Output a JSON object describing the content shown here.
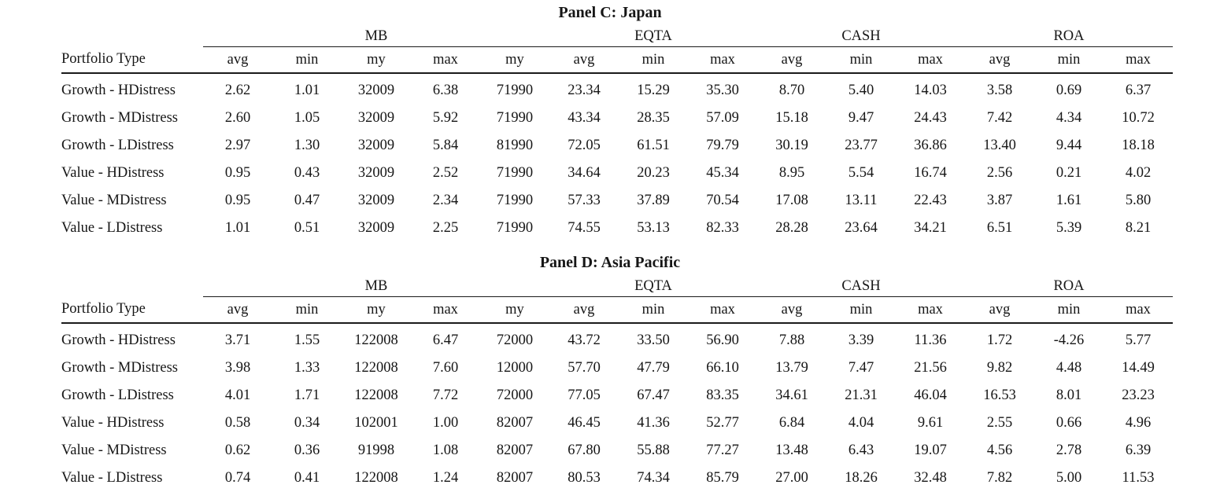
{
  "panels": [
    {
      "title": "Panel C: Japan",
      "row_header": "Portfolio Type",
      "groups": [
        {
          "label": "MB",
          "colspan": 5
        },
        {
          "label": "EQTA",
          "colspan": 3
        },
        {
          "label": "CASH",
          "colspan": 3
        },
        {
          "label": "ROA",
          "colspan": 3
        }
      ],
      "sub_headers": [
        "avg",
        "min",
        "my",
        "max",
        "my",
        "avg",
        "min",
        "max",
        "avg",
        "min",
        "max",
        "avg",
        "min",
        "max"
      ],
      "rows": [
        {
          "label": "Growth - HDistress",
          "values": [
            "2.62",
            "1.01",
            "32009",
            "6.38",
            "71990",
            "23.34",
            "15.29",
            "35.30",
            "8.70",
            "5.40",
            "14.03",
            "3.58",
            "0.69",
            "6.37"
          ]
        },
        {
          "label": "Growth - MDistress",
          "values": [
            "2.60",
            "1.05",
            "32009",
            "5.92",
            "71990",
            "43.34",
            "28.35",
            "57.09",
            "15.18",
            "9.47",
            "24.43",
            "7.42",
            "4.34",
            "10.72"
          ]
        },
        {
          "label": "Growth - LDistress",
          "values": [
            "2.97",
            "1.30",
            "32009",
            "5.84",
            "81990",
            "72.05",
            "61.51",
            "79.79",
            "30.19",
            "23.77",
            "36.86",
            "13.40",
            "9.44",
            "18.18"
          ]
        },
        {
          "label": "Value - HDistress",
          "values": [
            "0.95",
            "0.43",
            "32009",
            "2.52",
            "71990",
            "34.64",
            "20.23",
            "45.34",
            "8.95",
            "5.54",
            "16.74",
            "2.56",
            "0.21",
            "4.02"
          ]
        },
        {
          "label": "Value - MDistress",
          "values": [
            "0.95",
            "0.47",
            "32009",
            "2.34",
            "71990",
            "57.33",
            "37.89",
            "70.54",
            "17.08",
            "13.11",
            "22.43",
            "3.87",
            "1.61",
            "5.80"
          ]
        },
        {
          "label": "Value - LDistress",
          "values": [
            "1.01",
            "0.51",
            "32009",
            "2.25",
            "71990",
            "74.55",
            "53.13",
            "82.33",
            "28.28",
            "23.64",
            "34.21",
            "6.51",
            "5.39",
            "8.21"
          ]
        }
      ]
    },
    {
      "title": "Panel D: Asia Pacific",
      "row_header": "Portfolio Type",
      "groups": [
        {
          "label": "MB",
          "colspan": 5
        },
        {
          "label": "EQTA",
          "colspan": 3
        },
        {
          "label": "CASH",
          "colspan": 3
        },
        {
          "label": "ROA",
          "colspan": 3
        }
      ],
      "sub_headers": [
        "avg",
        "min",
        "my",
        "max",
        "my",
        "avg",
        "min",
        "max",
        "avg",
        "min",
        "max",
        "avg",
        "min",
        "max"
      ],
      "rows": [
        {
          "label": "Growth - HDistress",
          "values": [
            "3.71",
            "1.55",
            "122008",
            "6.47",
            "72000",
            "43.72",
            "33.50",
            "56.90",
            "7.88",
            "3.39",
            "11.36",
            "1.72",
            "-4.26",
            "5.77"
          ]
        },
        {
          "label": "Growth - MDistress",
          "values": [
            "3.98",
            "1.33",
            "122008",
            "7.60",
            "12000",
            "57.70",
            "47.79",
            "66.10",
            "13.79",
            "7.47",
            "21.56",
            "9.82",
            "4.48",
            "14.49"
          ]
        },
        {
          "label": "Growth - LDistress",
          "values": [
            "4.01",
            "1.71",
            "122008",
            "7.72",
            "72000",
            "77.05",
            "67.47",
            "83.35",
            "34.61",
            "21.31",
            "46.04",
            "16.53",
            "8.01",
            "23.23"
          ]
        },
        {
          "label": "Value - HDistress",
          "values": [
            "0.58",
            "0.34",
            "102001",
            "1.00",
            "82007",
            "46.45",
            "41.36",
            "52.77",
            "6.84",
            "4.04",
            "9.61",
            "2.55",
            "0.66",
            "4.96"
          ]
        },
        {
          "label": "Value - MDistress",
          "values": [
            "0.62",
            "0.36",
            "91998",
            "1.08",
            "82007",
            "67.80",
            "55.88",
            "77.27",
            "13.48",
            "6.43",
            "19.07",
            "4.56",
            "2.78",
            "6.39"
          ]
        },
        {
          "label": "Value - LDistress",
          "values": [
            "0.74",
            "0.41",
            "122008",
            "1.24",
            "82007",
            "80.53",
            "74.34",
            "85.79",
            "27.00",
            "18.26",
            "32.48",
            "7.82",
            "5.00",
            "11.53"
          ]
        }
      ]
    }
  ]
}
